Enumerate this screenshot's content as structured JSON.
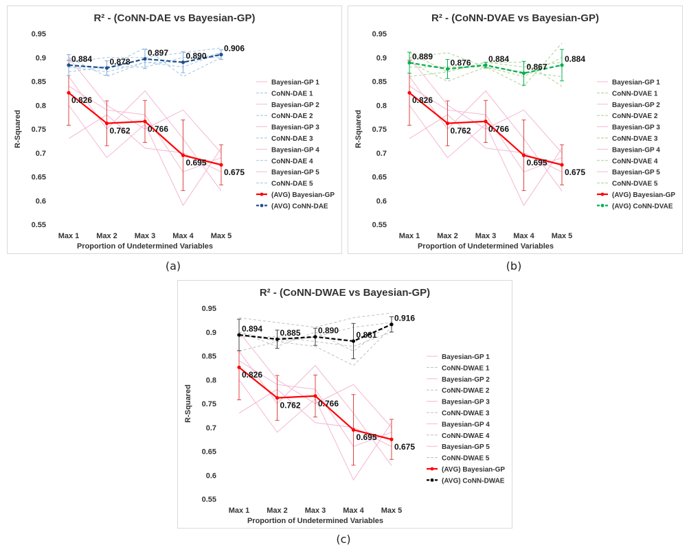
{
  "chart_data": [
    {
      "id": "a",
      "type": "line",
      "title": "R² - (CoNN-DAE vs Bayesian-GP)",
      "caption": "(a)",
      "xlabel": "Proportion of Undetermined Variables",
      "ylabel": "R-Squared",
      "categories": [
        "Max 1",
        "Max 2",
        "Max 3",
        "Max 4",
        "Max 5"
      ],
      "ylim": [
        0.55,
        0.95
      ],
      "yticks": [
        "0.55",
        "0.6",
        "0.65",
        "0.7",
        "0.75",
        "0.8",
        "0.85",
        "0.9",
        "0.95"
      ],
      "colors": {
        "bayes_faint": "#f4b6d2",
        "model_faint": "#9dc3e6",
        "bayes_avg": "#ff0000",
        "model_avg": "#1f4e8c",
        "error_bar": "#e04040",
        "model_error": "#7fa7d9"
      },
      "series": [
        {
          "name": "Bayesian-GP 1",
          "group": "bayes",
          "values": [
            0.8,
            0.69,
            0.76,
            0.59,
            0.71
          ]
        },
        {
          "name": "CoNN-DAE 1",
          "group": "model",
          "values": [
            0.9,
            0.86,
            0.89,
            0.88,
            0.91
          ]
        },
        {
          "name": "Bayesian-GP 2",
          "group": "bayes",
          "values": [
            0.73,
            0.78,
            0.71,
            0.7,
            0.66
          ]
        },
        {
          "name": "CoNN-DAE 2",
          "group": "model",
          "values": [
            0.87,
            0.88,
            0.92,
            0.86,
            0.9
          ]
        },
        {
          "name": "Bayesian-GP 3",
          "group": "bayes",
          "values": [
            0.86,
            0.75,
            0.83,
            0.73,
            0.62
          ]
        },
        {
          "name": "CoNN-DAE 3",
          "group": "model",
          "values": [
            0.89,
            0.9,
            0.9,
            0.91,
            0.92
          ]
        },
        {
          "name": "Bayesian-GP 4",
          "group": "bayes",
          "values": [
            0.84,
            0.79,
            0.78,
            0.66,
            0.69
          ]
        },
        {
          "name": "CoNN-DAE 4",
          "group": "model",
          "values": [
            0.88,
            0.87,
            0.89,
            0.89,
            0.91
          ]
        },
        {
          "name": "Bayesian-GP 5",
          "group": "bayes",
          "values": [
            0.9,
            0.8,
            0.75,
            0.79,
            0.7
          ]
        },
        {
          "name": "CoNN-DAE 5",
          "group": "model",
          "values": [
            0.88,
            0.88,
            0.88,
            0.9,
            0.9
          ]
        },
        {
          "name": "(AVG) Bayesian-GP",
          "group": "bayes_avg",
          "values": [
            0.826,
            0.762,
            0.766,
            0.695,
            0.675
          ],
          "labels": [
            "0.826",
            "0.762",
            "0.766",
            "0.695",
            "0.675"
          ],
          "errors": [
            0.068,
            0.047,
            0.044,
            0.074,
            0.042
          ]
        },
        {
          "name": "(AVG) CoNN-DAE",
          "group": "model_avg",
          "values": [
            0.884,
            0.878,
            0.897,
            0.89,
            0.906
          ],
          "labels": [
            "0.884",
            "0.878",
            "0.897",
            "0.890",
            "0.906"
          ],
          "errors": [
            0.022,
            0.015,
            0.02,
            0.022,
            0.01
          ]
        }
      ]
    },
    {
      "id": "b",
      "type": "line",
      "title": "R² - (CoNN-DVAE vs Bayesian-GP)",
      "caption": "(b)",
      "xlabel": "Proportion of Undetermined Variables",
      "ylabel": "R-Squared",
      "categories": [
        "Max 1",
        "Max 2",
        "Max 3",
        "Max 4",
        "Max 5"
      ],
      "ylim": [
        0.55,
        0.95
      ],
      "yticks": [
        "0.55",
        "0.6",
        "0.65",
        "0.7",
        "0.75",
        "0.8",
        "0.85",
        "0.9",
        "0.95"
      ],
      "colors": {
        "bayes_faint": "#f4b6d2",
        "model_faint": "#a9d18e",
        "bayes_avg": "#ff0000",
        "model_avg": "#00b050",
        "error_bar": "#e04040",
        "model_error": "#00b050"
      },
      "series": [
        {
          "name": "Bayesian-GP 1",
          "group": "bayes",
          "values": [
            0.8,
            0.69,
            0.76,
            0.59,
            0.71
          ]
        },
        {
          "name": "CoNN-DVAE 1",
          "group": "model",
          "values": [
            0.9,
            0.91,
            0.88,
            0.84,
            0.93
          ]
        },
        {
          "name": "Bayesian-GP 2",
          "group": "bayes",
          "values": [
            0.73,
            0.78,
            0.71,
            0.7,
            0.66
          ]
        },
        {
          "name": "CoNN-DVAE 2",
          "group": "model",
          "values": [
            0.86,
            0.87,
            0.89,
            0.89,
            0.84
          ]
        },
        {
          "name": "Bayesian-GP 3",
          "group": "bayes",
          "values": [
            0.86,
            0.75,
            0.83,
            0.73,
            0.62
          ]
        },
        {
          "name": "CoNN-DVAE 3",
          "group": "model",
          "values": [
            0.89,
            0.85,
            0.88,
            0.86,
            0.9
          ]
        },
        {
          "name": "Bayesian-GP 4",
          "group": "bayes",
          "values": [
            0.84,
            0.79,
            0.78,
            0.66,
            0.69
          ]
        },
        {
          "name": "CoNN-DVAE 4",
          "group": "model",
          "values": [
            0.88,
            0.88,
            0.88,
            0.87,
            0.86
          ]
        },
        {
          "name": "Bayesian-GP 5",
          "group": "bayes",
          "values": [
            0.9,
            0.8,
            0.75,
            0.79,
            0.7
          ]
        },
        {
          "name": "CoNN-DVAE 5",
          "group": "model",
          "values": [
            0.91,
            0.87,
            0.89,
            0.88,
            0.89
          ]
        },
        {
          "name": "(AVG) Bayesian-GP",
          "group": "bayes_avg",
          "values": [
            0.826,
            0.762,
            0.766,
            0.695,
            0.675
          ],
          "labels": [
            "0.826",
            "0.762",
            "0.766",
            "0.695",
            "0.675"
          ],
          "errors": [
            0.068,
            0.047,
            0.044,
            0.074,
            0.042
          ]
        },
        {
          "name": "(AVG) CoNN-DVAE",
          "group": "model_avg",
          "values": [
            0.889,
            0.876,
            0.884,
            0.867,
            0.884
          ],
          "labels": [
            "0.889",
            "0.876",
            "0.884",
            "0.867",
            "0.884"
          ],
          "errors": [
            0.022,
            0.02,
            0.006,
            0.025,
            0.033
          ]
        }
      ]
    },
    {
      "id": "c",
      "type": "line",
      "title": "R² - (CoNN-DWAE vs Bayesian-GP)",
      "caption": "(c)",
      "xlabel": "Proportion of Undetermined Variables",
      "ylabel": "R-Squared",
      "categories": [
        "Max 1",
        "Max 2",
        "Max 3",
        "Max 4",
        "Max 5"
      ],
      "ylim": [
        0.55,
        0.95
      ],
      "yticks": [
        "0.55",
        "0.6",
        "0.65",
        "0.7",
        "0.75",
        "0.8",
        "0.85",
        "0.9",
        "0.95"
      ],
      "colors": {
        "bayes_faint": "#f4b6d2",
        "model_faint": "#bfbfbf",
        "bayes_avg": "#ff0000",
        "model_avg": "#000000",
        "error_bar": "#e04040",
        "model_error": "#404040"
      },
      "series": [
        {
          "name": "Bayesian-GP 1",
          "group": "bayes",
          "values": [
            0.8,
            0.69,
            0.76,
            0.59,
            0.71
          ]
        },
        {
          "name": "CoNN-DWAE 1",
          "group": "model",
          "values": [
            0.93,
            0.92,
            0.91,
            0.93,
            0.94
          ]
        },
        {
          "name": "Bayesian-GP 2",
          "group": "bayes",
          "values": [
            0.73,
            0.78,
            0.71,
            0.7,
            0.66
          ]
        },
        {
          "name": "CoNN-DWAE 2",
          "group": "model",
          "values": [
            0.86,
            0.88,
            0.87,
            0.83,
            0.91
          ]
        },
        {
          "name": "Bayesian-GP 3",
          "group": "bayes",
          "values": [
            0.86,
            0.75,
            0.83,
            0.73,
            0.62
          ]
        },
        {
          "name": "CoNN-DWAE 3",
          "group": "model",
          "values": [
            0.9,
            0.87,
            0.9,
            0.86,
            0.92
          ]
        },
        {
          "name": "Bayesian-GP 4",
          "group": "bayes",
          "values": [
            0.84,
            0.79,
            0.78,
            0.66,
            0.69
          ]
        },
        {
          "name": "CoNN-DWAE 4",
          "group": "model",
          "values": [
            0.89,
            0.89,
            0.88,
            0.87,
            0.9
          ]
        },
        {
          "name": "Bayesian-GP 5",
          "group": "bayes",
          "values": [
            0.9,
            0.8,
            0.75,
            0.79,
            0.7
          ]
        },
        {
          "name": "CoNN-DWAE 5",
          "group": "model",
          "values": [
            0.9,
            0.88,
            0.89,
            0.91,
            0.92
          ]
        },
        {
          "name": "(AVG) Bayesian-GP",
          "group": "bayes_avg",
          "values": [
            0.826,
            0.762,
            0.766,
            0.695,
            0.675
          ],
          "labels": [
            "0.826",
            "0.762",
            "0.766",
            "0.695",
            "0.675"
          ],
          "errors": [
            0.068,
            0.047,
            0.044,
            0.074,
            0.042
          ]
        },
        {
          "name": "(AVG) CoNN-DWAE",
          "group": "model_avg",
          "values": [
            0.894,
            0.885,
            0.89,
            0.881,
            0.916
          ],
          "labels": [
            "0.894",
            "0.885",
            "0.890",
            "0.881",
            "0.916"
          ],
          "errors": [
            0.033,
            0.019,
            0.018,
            0.037,
            0.016
          ]
        }
      ]
    }
  ]
}
